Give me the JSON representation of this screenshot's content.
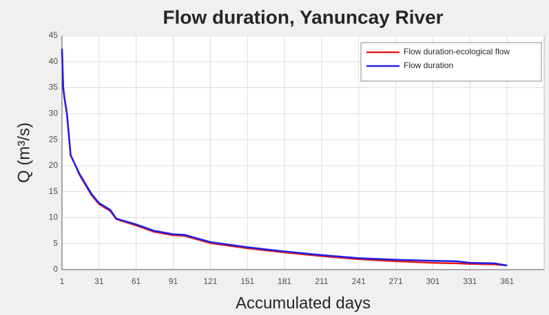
{
  "chart_data": {
    "type": "line",
    "title": "Flow duration, Yanuncay River",
    "xlabel": "Accumulated days",
    "ylabel": "Q (m³/s)",
    "x": [
      1,
      2,
      3,
      5,
      8,
      10,
      12,
      15,
      20,
      25,
      31,
      40,
      45,
      61,
      75,
      91,
      100,
      121,
      151,
      181,
      211,
      241,
      271,
      301,
      320,
      331,
      351,
      361
    ],
    "series": [
      {
        "name": "Flow duration-ecological flow",
        "color": "#e41a1c",
        "values": [
          42,
          35,
          33,
          30,
          22,
          21,
          20,
          18.3,
          16.3,
          14.3,
          12.6,
          11.3,
          9.7,
          8.5,
          7.3,
          6.6,
          6.5,
          5.1,
          4.1,
          3.3,
          2.6,
          2.0,
          1.6,
          1.3,
          1.2,
          1.1,
          1.0,
          0.8
        ]
      },
      {
        "name": "Flow duration",
        "color": "#1f1fe6",
        "values": [
          42.5,
          35,
          33,
          30,
          22,
          21,
          20,
          18.5,
          16.5,
          14.5,
          12.8,
          11.5,
          9.8,
          8.7,
          7.5,
          6.8,
          6.7,
          5.3,
          4.3,
          3.5,
          2.8,
          2.2,
          1.9,
          1.7,
          1.6,
          1.3,
          1.2,
          0.8
        ]
      }
    ],
    "xlim": [
      1,
      391
    ],
    "xticks": [
      1,
      31,
      61,
      91,
      121,
      151,
      181,
      211,
      241,
      271,
      301,
      331,
      361
    ],
    "ylim": [
      0,
      45
    ],
    "yticks": [
      0,
      5,
      10,
      15,
      20,
      25,
      30,
      35,
      40,
      45
    ],
    "grid": true,
    "legend": "upper right"
  }
}
